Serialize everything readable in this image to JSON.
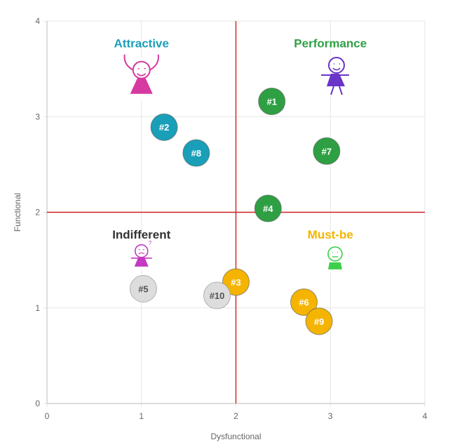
{
  "chart_data": {
    "type": "scatter",
    "xlabel": "Dysfunctional",
    "ylabel": "Functional",
    "xlim": [
      0,
      4
    ],
    "ylim": [
      0,
      4
    ],
    "x_ticks": [
      "0",
      "1",
      "2",
      "3",
      "4"
    ],
    "y_ticks": [
      "0",
      "1",
      "2",
      "3",
      "4"
    ],
    "grid": true,
    "divider_x": 2,
    "divider_y": 2,
    "divider_color": "#cc2222",
    "quadrants": [
      {
        "label": "Attractive",
        "color": "#1a9fb8",
        "icon": "excited-stick-figure-icon",
        "icon_color": "#d63aa0"
      },
      {
        "label": "Performance",
        "color": "#2ea043",
        "icon": "happy-stick-figure-icon",
        "icon_color": "#6a34c8"
      },
      {
        "label": "Indifferent",
        "color": "#333333",
        "icon": "confused-stick-figure-icon",
        "icon_color": "#c43ac0"
      },
      {
        "label": "Must-be",
        "color": "#f5b400",
        "icon": "neutral-stick-figure-icon",
        "icon_color": "#3ccf4a"
      }
    ],
    "points": [
      {
        "label": "#1",
        "x": 2.38,
        "y": 3.16,
        "color": "#2ea043"
      },
      {
        "label": "#2",
        "x": 1.24,
        "y": 2.89,
        "color": "#1a9fb8"
      },
      {
        "label": "#3",
        "x": 2.0,
        "y": 1.27,
        "color": "#f5b400"
      },
      {
        "label": "#4",
        "x": 2.34,
        "y": 2.04,
        "color": "#2ea043"
      },
      {
        "label": "#5",
        "x": 1.02,
        "y": 1.2,
        "color": "#dddddd"
      },
      {
        "label": "#6",
        "x": 2.72,
        "y": 1.06,
        "color": "#f5b400"
      },
      {
        "label": "#7",
        "x": 2.96,
        "y": 2.64,
        "color": "#2ea043"
      },
      {
        "label": "#8",
        "x": 1.58,
        "y": 2.62,
        "color": "#1a9fb8"
      },
      {
        "label": "#9",
        "x": 2.88,
        "y": 0.86,
        "color": "#f5b400"
      },
      {
        "label": "#10",
        "x": 1.8,
        "y": 1.13,
        "color": "#dddddd"
      }
    ]
  }
}
